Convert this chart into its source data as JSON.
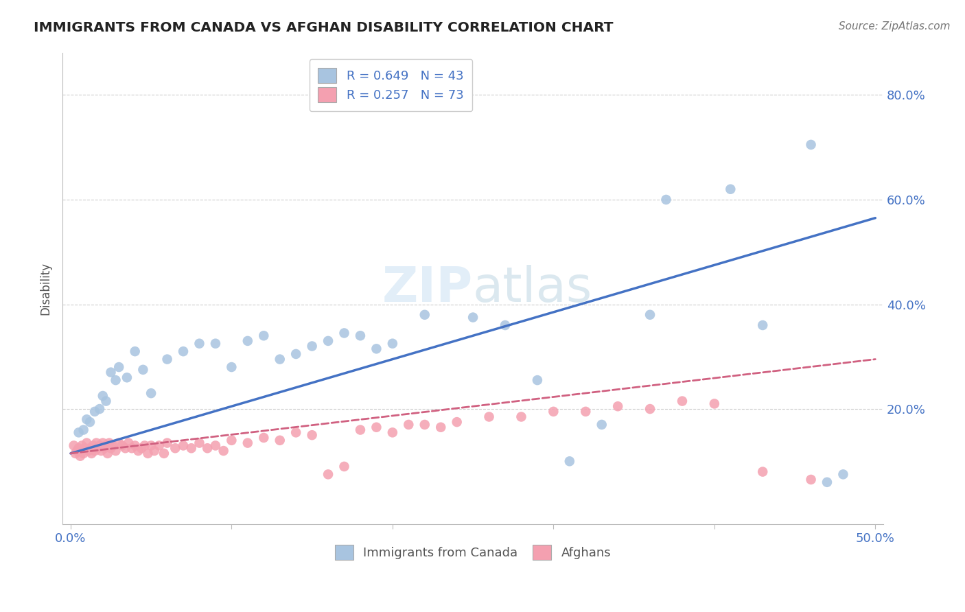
{
  "title": "IMMIGRANTS FROM CANADA VS AFGHAN DISABILITY CORRELATION CHART",
  "source": "Source: ZipAtlas.com",
  "ylabel": "Disability",
  "watermark": "ZIPatlas",
  "blue_R": 0.649,
  "blue_N": 43,
  "pink_R": 0.257,
  "pink_N": 73,
  "xlim_min": 0.0,
  "xlim_max": 0.5,
  "ylim_min": -0.02,
  "ylim_max": 0.88,
  "blue_line_x0": 0.0,
  "blue_line_y0": 0.115,
  "blue_line_x1": 0.5,
  "blue_line_y1": 0.565,
  "pink_line_x0": 0.0,
  "pink_line_y0": 0.115,
  "pink_line_x1": 0.5,
  "pink_line_y1": 0.295,
  "blue_scatter_x": [
    0.005,
    0.008,
    0.01,
    0.012,
    0.015,
    0.018,
    0.02,
    0.022,
    0.025,
    0.028,
    0.03,
    0.035,
    0.04,
    0.045,
    0.05,
    0.06,
    0.07,
    0.08,
    0.09,
    0.1,
    0.11,
    0.12,
    0.13,
    0.14,
    0.15,
    0.16,
    0.17,
    0.18,
    0.19,
    0.2,
    0.22,
    0.25,
    0.27,
    0.29,
    0.33,
    0.36,
    0.37,
    0.41,
    0.43,
    0.46,
    0.47,
    0.48,
    0.31
  ],
  "blue_scatter_y": [
    0.155,
    0.16,
    0.18,
    0.175,
    0.195,
    0.2,
    0.225,
    0.215,
    0.27,
    0.255,
    0.28,
    0.26,
    0.31,
    0.275,
    0.23,
    0.295,
    0.31,
    0.325,
    0.325,
    0.28,
    0.33,
    0.34,
    0.295,
    0.305,
    0.32,
    0.33,
    0.345,
    0.34,
    0.315,
    0.325,
    0.38,
    0.375,
    0.36,
    0.255,
    0.17,
    0.38,
    0.6,
    0.62,
    0.36,
    0.705,
    0.06,
    0.075,
    0.1
  ],
  "pink_scatter_x": [
    0.002,
    0.003,
    0.004,
    0.005,
    0.006,
    0.007,
    0.008,
    0.009,
    0.01,
    0.011,
    0.012,
    0.013,
    0.014,
    0.015,
    0.016,
    0.017,
    0.018,
    0.019,
    0.02,
    0.021,
    0.022,
    0.023,
    0.024,
    0.025,
    0.026,
    0.028,
    0.03,
    0.032,
    0.034,
    0.036,
    0.038,
    0.04,
    0.042,
    0.044,
    0.046,
    0.048,
    0.05,
    0.052,
    0.055,
    0.058,
    0.06,
    0.065,
    0.07,
    0.075,
    0.08,
    0.085,
    0.09,
    0.095,
    0.1,
    0.11,
    0.12,
    0.13,
    0.14,
    0.15,
    0.16,
    0.17,
    0.18,
    0.19,
    0.2,
    0.21,
    0.22,
    0.23,
    0.24,
    0.26,
    0.28,
    0.3,
    0.32,
    0.34,
    0.36,
    0.38,
    0.4,
    0.43,
    0.46
  ],
  "pink_scatter_y": [
    0.13,
    0.115,
    0.12,
    0.125,
    0.11,
    0.13,
    0.115,
    0.125,
    0.135,
    0.12,
    0.125,
    0.115,
    0.13,
    0.12,
    0.135,
    0.125,
    0.13,
    0.12,
    0.135,
    0.125,
    0.13,
    0.115,
    0.135,
    0.125,
    0.13,
    0.12,
    0.135,
    0.13,
    0.125,
    0.135,
    0.125,
    0.13,
    0.12,
    0.125,
    0.13,
    0.115,
    0.13,
    0.12,
    0.13,
    0.115,
    0.135,
    0.125,
    0.13,
    0.125,
    0.135,
    0.125,
    0.13,
    0.12,
    0.14,
    0.135,
    0.145,
    0.14,
    0.155,
    0.15,
    0.075,
    0.09,
    0.16,
    0.165,
    0.155,
    0.17,
    0.17,
    0.165,
    0.175,
    0.185,
    0.185,
    0.195,
    0.195,
    0.205,
    0.2,
    0.215,
    0.21,
    0.08,
    0.065
  ],
  "blue_color": "#a8c4e0",
  "blue_line_color": "#4472c4",
  "pink_color": "#f4a0b0",
  "pink_line_color": "#d06080",
  "grid_color": "#cccccc",
  "title_color": "#222222",
  "axis_label_color": "#4472c4",
  "legend_text_color": "#4472c4",
  "right_axis_color": "#4472c4",
  "source_color": "#777777",
  "ylabel_color": "#555555"
}
